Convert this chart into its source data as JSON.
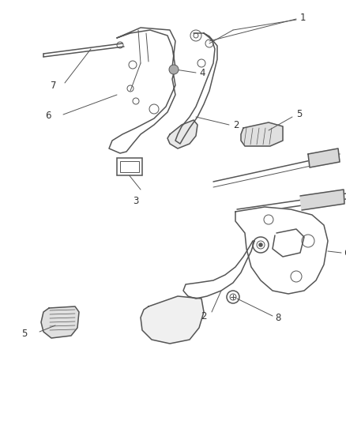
{
  "bg_color": "#ffffff",
  "line_color": "#555555",
  "label_color": "#333333",
  "fig_width": 4.38,
  "fig_height": 5.33,
  "dpi": 100,
  "label_fs": 8.5,
  "lw_main": 1.1,
  "lw_thin": 0.7
}
